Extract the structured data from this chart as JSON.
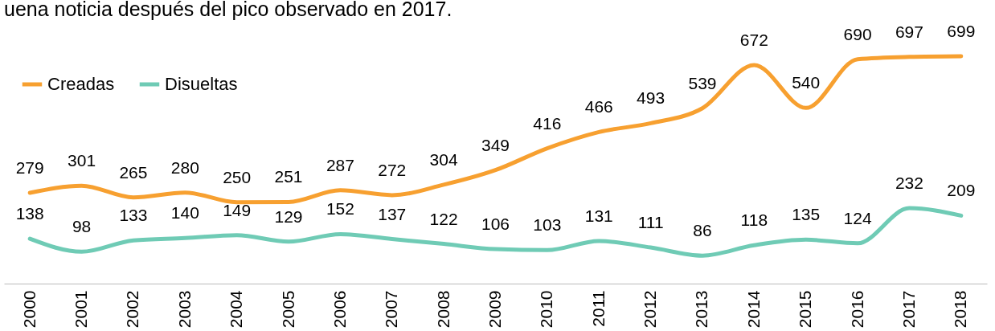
{
  "chart_data": {
    "type": "line",
    "title": "uena noticia después del pico observado en 2017.",
    "categories": [
      "2000",
      "2001",
      "2002",
      "2003",
      "2004",
      "2005",
      "2006",
      "2007",
      "2008",
      "2009",
      "2010",
      "2011",
      "2012",
      "2013",
      "2014",
      "2015",
      "2016",
      "2017",
      "2018"
    ],
    "series": [
      {
        "name": "Creadas",
        "color": "#f7a030",
        "values": [
          279,
          301,
          265,
          280,
          250,
          251,
          287,
          272,
          304,
          349,
          416,
          466,
          493,
          539,
          672,
          540,
          690,
          697,
          699
        ]
      },
      {
        "name": "Disueltas",
        "color": "#6fcbb5",
        "values": [
          138,
          98,
          133,
          140,
          149,
          129,
          152,
          137,
          122,
          106,
          103,
          131,
          111,
          86,
          118,
          135,
          124,
          232,
          209
        ]
      }
    ],
    "data_labels": true,
    "legend": "top left",
    "grid": false,
    "marker": "none",
    "line_style": "solid"
  }
}
